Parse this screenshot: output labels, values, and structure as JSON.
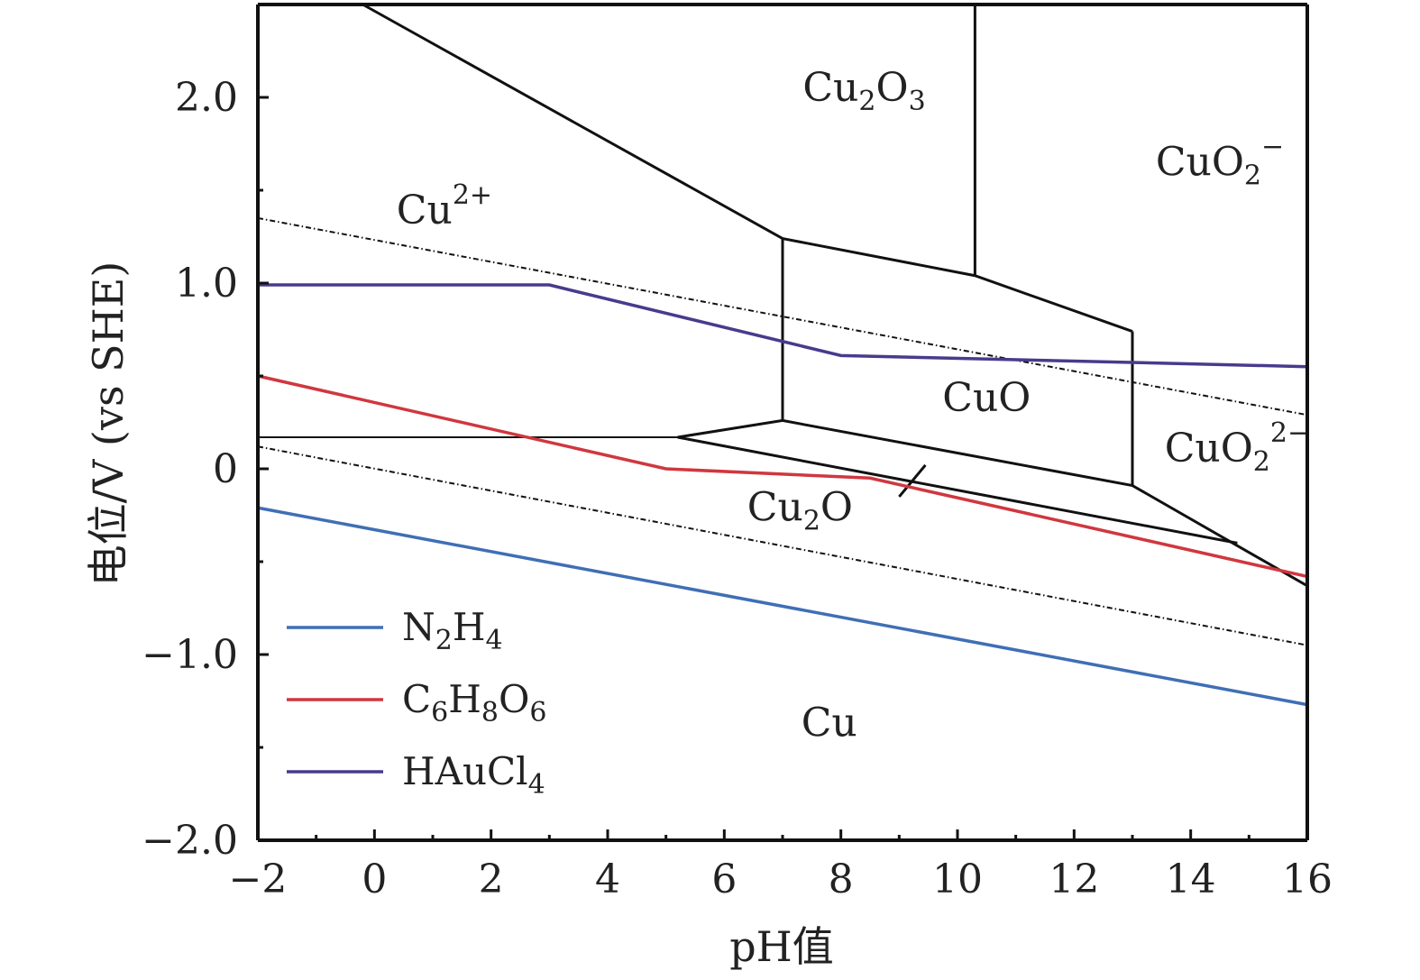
{
  "chart_data": {
    "type": "line",
    "xlabel": "pH值",
    "ylabel": "电位/V (vs SHE)",
    "xlim": [
      -2,
      16
    ],
    "ylim": [
      -2.0,
      2.5
    ],
    "x_ticks": [
      "−2",
      "0",
      "2",
      "4",
      "6",
      "8",
      "10",
      "12",
      "14",
      "16"
    ],
    "y_ticks": [
      "−2.0",
      "−1.0",
      "0",
      "1.0",
      "2.0"
    ],
    "legend_position": "bottom-left",
    "series": [
      {
        "name": "N2H4",
        "name_main": "N",
        "name_parts": [
          [
            "N",
            ""
          ],
          [
            "2",
            "sub"
          ],
          [
            "H",
            ""
          ],
          [
            "4",
            "sub"
          ]
        ],
        "color": "#3f6fb5",
        "x": [
          -2,
          16
        ],
        "y": [
          -0.21,
          -1.27
        ]
      },
      {
        "name": "C6H8O6",
        "name_parts": [
          [
            "C",
            ""
          ],
          [
            "6",
            "sub"
          ],
          [
            "H",
            ""
          ],
          [
            "8",
            "sub"
          ],
          [
            "O",
            ""
          ],
          [
            "6",
            "sub"
          ]
        ],
        "color": "#d0373f",
        "x": [
          -2,
          5,
          8.5,
          16
        ],
        "y": [
          0.5,
          0.0,
          -0.05,
          -0.58
        ]
      },
      {
        "name": "HAuCl4",
        "name_parts": [
          [
            "HAuCl",
            ""
          ],
          [
            "4",
            "sub"
          ]
        ],
        "color": "#4a3a8c",
        "x": [
          -2,
          3,
          8,
          16
        ],
        "y": [
          0.99,
          0.99,
          0.61,
          0.55
        ]
      }
    ],
    "boundaries": [
      {
        "x": [
          -0.2,
          7,
          10.3,
          13
        ],
        "y": [
          2.5,
          1.24,
          1.04,
          0.74
        ]
      },
      {
        "x": [
          7,
          7
        ],
        "y": [
          1.24,
          0.26
        ]
      },
      {
        "x": [
          10.3,
          10.3
        ],
        "y": [
          1.04,
          2.5
        ]
      },
      {
        "x": [
          13,
          13
        ],
        "y": [
          0.74,
          -0.09
        ]
      },
      {
        "x": [
          -2,
          5.2
        ],
        "y": [
          0.17,
          0.17
        ]
      },
      {
        "x": [
          5.2,
          7,
          13,
          16
        ],
        "y": [
          0.17,
          0.26,
          -0.09,
          -0.63
        ]
      },
      {
        "x": [
          5.2,
          14.8
        ],
        "y": [
          0.17,
          -0.4
        ]
      }
    ],
    "water_lines": [
      {
        "x": [
          -2,
          16
        ],
        "y": [
          1.35,
          0.29
        ]
      },
      {
        "x": [
          -2,
          16
        ],
        "y": [
          0.12,
          -0.95
        ]
      }
    ],
    "regions": [
      {
        "parts": [
          [
            "Cu",
            ""
          ],
          [
            "2",
            "sub"
          ],
          [
            "O",
            ""
          ],
          [
            "3",
            "sub"
          ]
        ],
        "x": 8.4,
        "y": 1.98
      },
      {
        "parts": [
          [
            "CuO",
            ""
          ],
          [
            "2",
            "sub"
          ],
          [
            "−",
            "sup"
          ]
        ],
        "x": 14.5,
        "y": 1.58
      },
      {
        "parts": [
          [
            "Cu",
            ""
          ],
          [
            "2+",
            "sup"
          ]
        ],
        "x": 1.2,
        "y": 1.32
      },
      {
        "parts": [
          [
            "CuO",
            ""
          ]
        ],
        "x": 10.5,
        "y": 0.31
      },
      {
        "parts": [
          [
            "CuO",
            ""
          ],
          [
            "2",
            "sub"
          ],
          [
            "2−",
            "sup"
          ]
        ],
        "x": 14.8,
        "y": 0.04
      },
      {
        "parts": [
          [
            "Cu",
            ""
          ],
          [
            "2",
            "sub"
          ],
          [
            "O",
            ""
          ]
        ],
        "x": 7.3,
        "y": -0.28
      },
      {
        "parts": [
          [
            "Cu",
            ""
          ]
        ],
        "x": 7.8,
        "y": -1.44
      }
    ],
    "pointer": {
      "x": [
        9.0,
        9.45
      ],
      "y": [
        -0.15,
        0.02
      ]
    }
  }
}
